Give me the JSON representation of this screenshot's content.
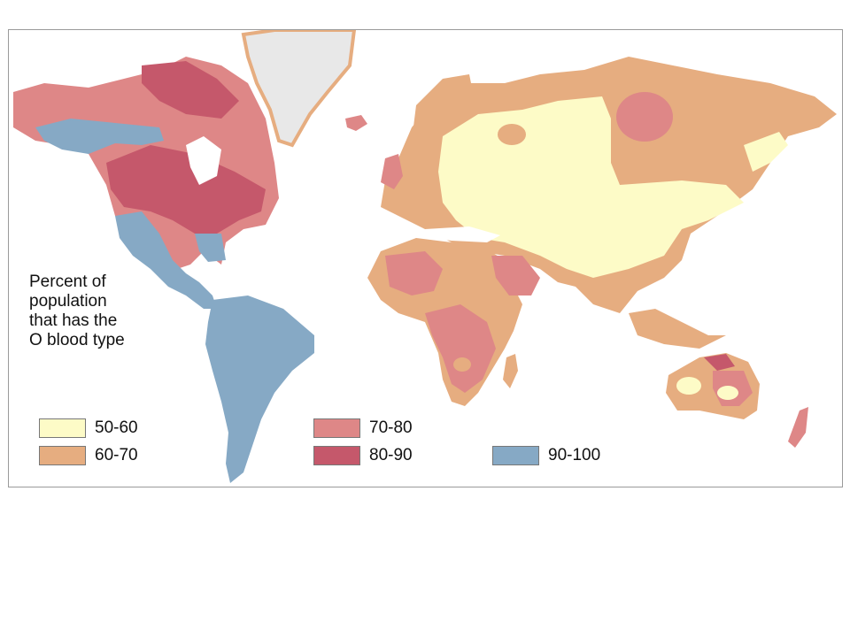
{
  "legend": {
    "title_lines": [
      "Percent of",
      "population",
      "that has the",
      "O blood type"
    ],
    "items": [
      {
        "label": "50-60",
        "color": "#fdfbc7"
      },
      {
        "label": "60-70",
        "color": "#e6ad80"
      },
      {
        "label": "70-80",
        "color": "#de8787"
      },
      {
        "label": "80-90",
        "color": "#c5586b"
      },
      {
        "label": "90-100",
        "color": "#86a9c5"
      }
    ]
  },
  "colors": {
    "greenland": "#e8e8e8",
    "frame_border": "#9a9a9a"
  }
}
